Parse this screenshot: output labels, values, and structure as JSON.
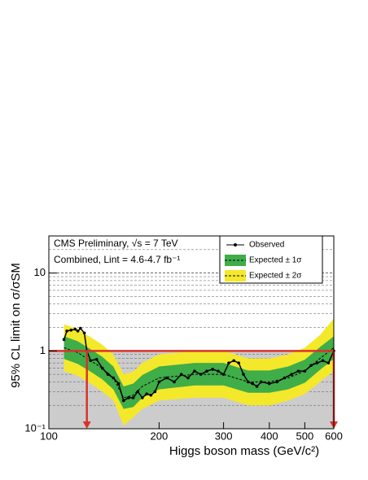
{
  "chart_data": {
    "type": "line",
    "annotations": [
      "CMS Preliminary, √s = 7 TeV",
      "Combined, Lint = 4.6-4.7 fb⁻¹"
    ],
    "xlabel": "Higgs boson mass (GeV/c²)",
    "ylabel": "95% CL limit on σ/σSM",
    "log_x": true,
    "log_y": true,
    "xlim": [
      100,
      600
    ],
    "ylim": [
      0.1,
      30
    ],
    "xticks": [
      100,
      200,
      300,
      400,
      500,
      600
    ],
    "yticks": [
      {
        "value": 0.1,
        "label": "10⁻¹"
      },
      1,
      10
    ],
    "ygrid": [
      0.2,
      0.3,
      0.4,
      0.5,
      0.6,
      0.7,
      0.8,
      0.9,
      2,
      3,
      4,
      5,
      6,
      7,
      8,
      9,
      20,
      30
    ],
    "excluded_color": "#cccccc",
    "limit": {
      "value": 1,
      "color": "#d9322b"
    },
    "arrows": [
      127,
      600
    ],
    "observed": {
      "name": "Observed",
      "color": "#000000",
      "x": [
        110,
        112,
        115,
        118,
        120,
        122,
        125,
        127,
        130,
        135,
        140,
        145,
        150,
        155,
        160,
        165,
        170,
        175,
        180,
        185,
        190,
        195,
        200,
        210,
        220,
        230,
        240,
        250,
        260,
        270,
        280,
        290,
        300,
        310,
        320,
        330,
        340,
        350,
        360,
        370,
        380,
        400,
        420,
        440,
        460,
        480,
        500,
        520,
        540,
        560,
        580,
        600
      ],
      "values": [
        1.4,
        1.8,
        1.85,
        1.9,
        1.8,
        1.95,
        1.7,
        1.0,
        0.75,
        0.78,
        0.6,
        0.5,
        0.45,
        0.38,
        0.23,
        0.25,
        0.25,
        0.3,
        0.25,
        0.28,
        0.27,
        0.3,
        0.4,
        0.45,
        0.4,
        0.5,
        0.45,
        0.55,
        0.5,
        0.55,
        0.58,
        0.55,
        0.5,
        0.7,
        0.75,
        0.7,
        0.5,
        0.4,
        0.38,
        0.35,
        0.4,
        0.38,
        0.4,
        0.45,
        0.5,
        0.55,
        0.55,
        0.65,
        0.7,
        0.75,
        0.7,
        1.0
      ]
    },
    "expected": {
      "color": "#000000",
      "x": [
        110,
        120,
        130,
        140,
        150,
        160,
        170,
        180,
        200,
        250,
        300,
        350,
        400,
        450,
        500,
        550,
        600
      ],
      "values": [
        1.1,
        0.95,
        0.75,
        0.6,
        0.45,
        0.25,
        0.27,
        0.35,
        0.45,
        0.5,
        0.5,
        0.4,
        0.4,
        0.45,
        0.55,
        0.8,
        1.1
      ],
      "band1": {
        "name": "Expected ± 1σ",
        "color": "#3fad48",
        "lo": [
          0.79,
          0.68,
          0.54,
          0.43,
          0.32,
          0.18,
          0.19,
          0.25,
          0.32,
          0.36,
          0.36,
          0.29,
          0.29,
          0.32,
          0.39,
          0.57,
          0.79
        ],
        "hi": [
          1.54,
          1.33,
          1.05,
          0.84,
          0.63,
          0.35,
          0.38,
          0.49,
          0.63,
          0.7,
          0.7,
          0.56,
          0.56,
          0.63,
          0.77,
          1.12,
          1.54
        ]
      },
      "band2": {
        "name": "Expected ± 2σ",
        "color": "#f4e82a",
        "lo": [
          0.55,
          0.48,
          0.38,
          0.3,
          0.23,
          0.11,
          0.14,
          0.18,
          0.23,
          0.25,
          0.25,
          0.2,
          0.2,
          0.23,
          0.28,
          0.4,
          0.55
        ],
        "hi": [
          2.2,
          1.9,
          1.5,
          1.2,
          0.9,
          0.5,
          0.54,
          0.7,
          0.9,
          1.0,
          1.0,
          0.8,
          0.8,
          0.9,
          1.1,
          1.6,
          2.6
        ]
      }
    }
  }
}
